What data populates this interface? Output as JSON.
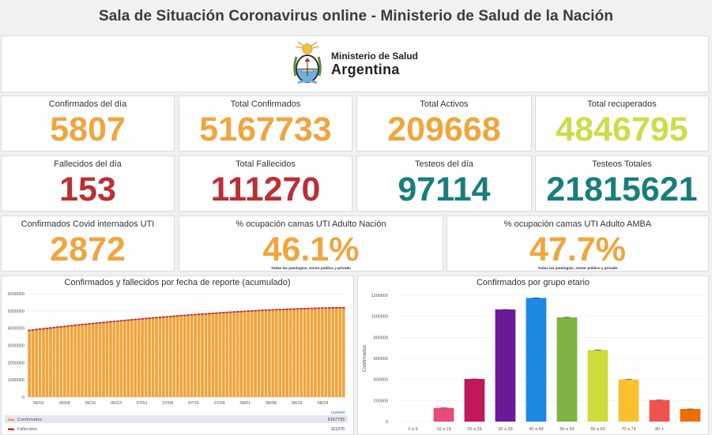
{
  "page": {
    "title": "Sala de Situación Coronavirus online - Ministerio de Salud de la Nación"
  },
  "logo": {
    "line1": "Ministerio de Salud",
    "line2": "Argentina"
  },
  "stats": {
    "confirmados_dia": {
      "label": "Confirmados del día",
      "value": "5807"
    },
    "total_confirmados": {
      "label": "Total Confirmados",
      "value": "5167733"
    },
    "total_activos": {
      "label": "Total Activos",
      "value": "209668"
    },
    "total_recuperados": {
      "label": "Total recuperados",
      "value": "4846795"
    },
    "fallecidos_dia": {
      "label": "Fallecidos del día",
      "value": "153"
    },
    "total_fallecidos": {
      "label": "Total Fallecidos",
      "value": "111270"
    },
    "testeos_dia": {
      "label": "Testeos del día",
      "value": "97114"
    },
    "testeos_totales": {
      "label": "Testeos Totales",
      "value": "21815621"
    },
    "internados_uti": {
      "label": "Confirmados Covid internados UTI",
      "value": "2872"
    },
    "ocupacion_nacion": {
      "label": "% ocupación camas UTI Adulto Nación",
      "value": "46.1%",
      "note": "Todas las patologías, sector público y privado"
    },
    "ocupacion_amba": {
      "label": "% ocupación camas UTI Adulto AMBA",
      "value": "47.7%",
      "note": "Todas las patologías, sector público y privado"
    }
  },
  "colors": {
    "orange": "#f0a53d",
    "green": "#cddc4a",
    "red": "#bb2f35",
    "teal": "#197d7d"
  },
  "chart_data": [
    {
      "type": "bar",
      "title": "Confirmados y fallecidos por fecha de reporte (acumulado)",
      "ylim": [
        0,
        6000000
      ],
      "yticks": [
        "0",
        "1000000",
        "2000000",
        "3000000",
        "4000000",
        "5000000",
        "6000000"
      ],
      "xticks": [
        "06/01",
        "06/08",
        "06/16",
        "06/23",
        "07/01",
        "07/08",
        "07/16",
        "07/24",
        "08/01",
        "08/08",
        "08/16",
        "08/24"
      ],
      "series": [
        {
          "name": "Confirmados",
          "color": "#f0a53d",
          "start": 3860000,
          "end": 5167733,
          "count": 90
        },
        {
          "name": "Fallecidos",
          "color": "#bb2f35"
        }
      ],
      "legend": {
        "header": "current",
        "rows": [
          {
            "name": "Confirmados",
            "value": "5167733",
            "color": "#f0a53d"
          },
          {
            "name": "Fallecidos",
            "value": "111270",
            "color": "#bb2f35"
          }
        ]
      }
    },
    {
      "type": "bar",
      "title": "Confirmados por grupo etario",
      "ylabel": "Confirmados",
      "ylim": [
        0,
        1200000
      ],
      "yticks": [
        "0",
        "200000",
        "400000",
        "600000",
        "800000",
        "1000000",
        "1200000"
      ],
      "categories": [
        "0 a 9",
        "10 a 19",
        "20 a 29",
        "30 a 39",
        "40 a 49",
        "50 a 59",
        "60 a 69",
        "70 a 79",
        "80 +",
        ""
      ],
      "values": [
        0,
        130000,
        405000,
        1065000,
        1175000,
        990000,
        680000,
        400000,
        205000,
        120000
      ],
      "colors": [
        "#e91e63",
        "#e84a7a",
        "#c2185b",
        "#6a1b9a",
        "#1e88e5",
        "#7cb342",
        "#cddc39",
        "#fbc02d",
        "#ef5350",
        "#ef6c00"
      ]
    }
  ]
}
